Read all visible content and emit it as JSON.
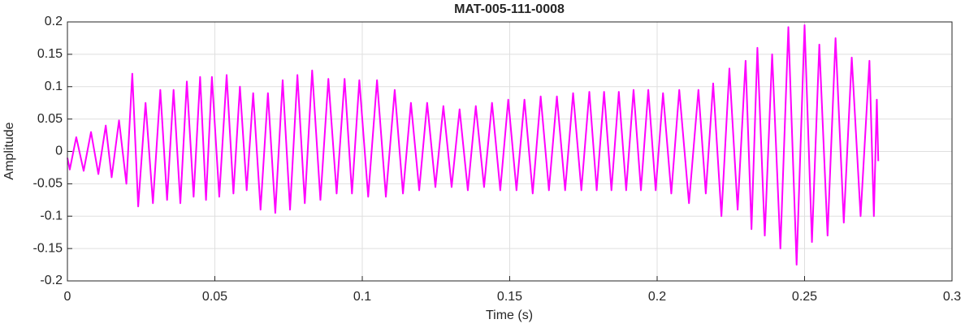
{
  "chart_data": {
    "type": "line",
    "title": "MAT-005-111-0008",
    "x_label": "Time (s)",
    "y_label": "Amplitude",
    "xlim": [
      0,
      0.3
    ],
    "ylim": [
      -0.2,
      0.2
    ],
    "xticks": [
      0,
      0.05,
      0.1,
      0.15,
      0.2,
      0.25,
      0.3
    ],
    "yticks": [
      -0.2,
      -0.15,
      -0.1,
      -0.05,
      0,
      0.05,
      0.1,
      0.15,
      0.2
    ],
    "grid": true,
    "series": [
      {
        "color": "#ff00ff",
        "x": [
          0,
          0.0008,
          0.003,
          0.0055,
          0.008,
          0.0105,
          0.013,
          0.015,
          0.0175,
          0.02,
          0.022,
          0.024,
          0.0265,
          0.029,
          0.0315,
          0.0338,
          0.036,
          0.0383,
          0.0405,
          0.0428,
          0.045,
          0.047,
          0.049,
          0.0515,
          0.054,
          0.0563,
          0.0585,
          0.0608,
          0.063,
          0.0655,
          0.068,
          0.0705,
          0.073,
          0.0755,
          0.078,
          0.0805,
          0.083,
          0.0858,
          0.0885,
          0.0913,
          0.094,
          0.0965,
          0.099,
          0.102,
          0.105,
          0.108,
          0.111,
          0.1138,
          0.1165,
          0.1193,
          0.122,
          0.1248,
          0.1275,
          0.1303,
          0.133,
          0.1358,
          0.1385,
          0.1413,
          0.144,
          0.1468,
          0.1495,
          0.1523,
          0.155,
          0.1578,
          0.1605,
          0.1633,
          0.166,
          0.1688,
          0.1715,
          0.1743,
          0.177,
          0.1795,
          0.182,
          0.1845,
          0.187,
          0.1895,
          0.192,
          0.1945,
          0.197,
          0.1995,
          0.202,
          0.2048,
          0.2075,
          0.2108,
          0.214,
          0.2165,
          0.219,
          0.2218,
          0.2245,
          0.2273,
          0.23,
          0.232,
          0.234,
          0.2365,
          0.239,
          0.2418,
          0.2445,
          0.2473,
          0.25,
          0.2525,
          0.255,
          0.2578,
          0.2605,
          0.2633,
          0.266,
          0.269,
          0.272,
          0.2735,
          0.2745,
          0.275
        ],
        "values": [
          -0.01,
          -0.028,
          0.022,
          -0.03,
          0.03,
          -0.035,
          0.04,
          -0.04,
          0.048,
          -0.05,
          0.12,
          -0.085,
          0.075,
          -0.08,
          0.095,
          -0.075,
          0.095,
          -0.08,
          0.108,
          -0.07,
          0.115,
          -0.075,
          0.115,
          -0.07,
          0.118,
          -0.065,
          0.1,
          -0.06,
          0.09,
          -0.09,
          0.09,
          -0.095,
          0.11,
          -0.09,
          0.118,
          -0.08,
          0.125,
          -0.075,
          0.112,
          -0.065,
          0.112,
          -0.065,
          0.11,
          -0.07,
          0.11,
          -0.07,
          0.095,
          -0.065,
          0.075,
          -0.06,
          0.075,
          -0.055,
          0.07,
          -0.055,
          0.065,
          -0.06,
          0.07,
          -0.055,
          0.075,
          -0.06,
          0.08,
          -0.06,
          0.08,
          -0.065,
          0.085,
          -0.06,
          0.085,
          -0.06,
          0.09,
          -0.06,
          0.092,
          -0.06,
          0.092,
          -0.06,
          0.092,
          -0.06,
          0.095,
          -0.06,
          0.095,
          -0.06,
          0.09,
          -0.065,
          0.095,
          -0.08,
          0.095,
          -0.065,
          0.105,
          -0.1,
          0.128,
          -0.09,
          0.14,
          -0.12,
          0.16,
          -0.13,
          0.15,
          -0.15,
          0.192,
          -0.175,
          0.195,
          -0.14,
          0.165,
          -0.13,
          0.175,
          -0.11,
          0.145,
          -0.1,
          0.14,
          -0.1,
          0.08,
          -0.015
        ]
      }
    ]
  }
}
